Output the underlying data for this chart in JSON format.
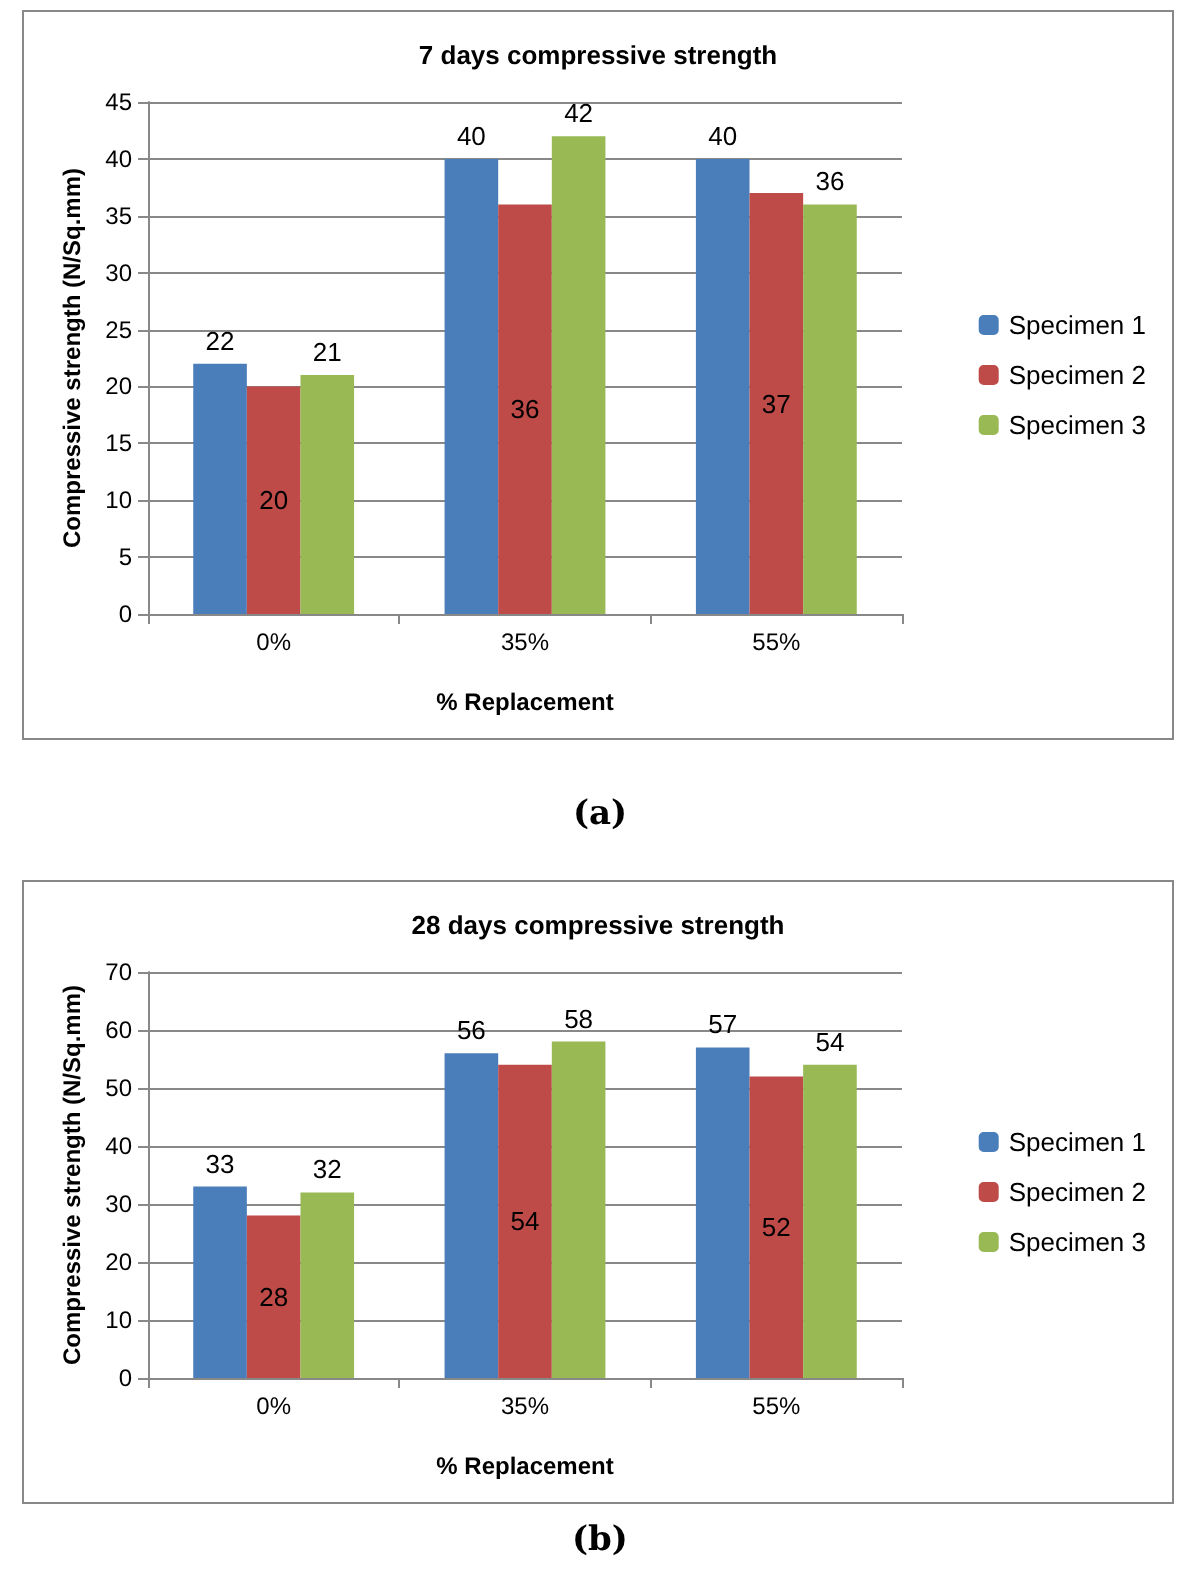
{
  "chart_data": [
    {
      "type": "bar",
      "title": "7 days compressive strength",
      "xlabel": "% Replacement",
      "ylabel": "Compressive strength (N/Sq.mm)",
      "categories": [
        "0%",
        "35%",
        "55%"
      ],
      "series": [
        {
          "name": "Specimen 1",
          "color": "#4a7ebb",
          "values": [
            22,
            40,
            40
          ]
        },
        {
          "name": "Specimen 2",
          "color": "#be4b48",
          "values": [
            20,
            36,
            37
          ]
        },
        {
          "name": "Specimen 3",
          "color": "#98b954",
          "values": [
            21,
            42,
            36
          ]
        }
      ],
      "ylim": [
        0,
        45
      ],
      "yticks": [
        0,
        5,
        10,
        15,
        20,
        25,
        30,
        35,
        40,
        45
      ],
      "grid": "y",
      "legend": "right",
      "data_labels": true,
      "annotations": [
        "(a)"
      ]
    },
    {
      "type": "bar",
      "title": "28 days compressive strength",
      "xlabel": "% Replacement",
      "ylabel": "Compressive strength (N/Sq.mm)",
      "categories": [
        "0%",
        "35%",
        "55%"
      ],
      "series": [
        {
          "name": "Specimen 1",
          "color": "#4a7ebb",
          "values": [
            33,
            56,
            57
          ]
        },
        {
          "name": "Specimen 2",
          "color": "#be4b48",
          "values": [
            28,
            54,
            52
          ]
        },
        {
          "name": "Specimen 3",
          "color": "#98b954",
          "values": [
            32,
            58,
            54
          ]
        }
      ],
      "ylim": [
        0,
        70
      ],
      "yticks": [
        0,
        10,
        20,
        30,
        40,
        50,
        60,
        70
      ],
      "grid": "y",
      "legend": "right",
      "data_labels": true,
      "annotations": [
        "(b)"
      ]
    }
  ]
}
